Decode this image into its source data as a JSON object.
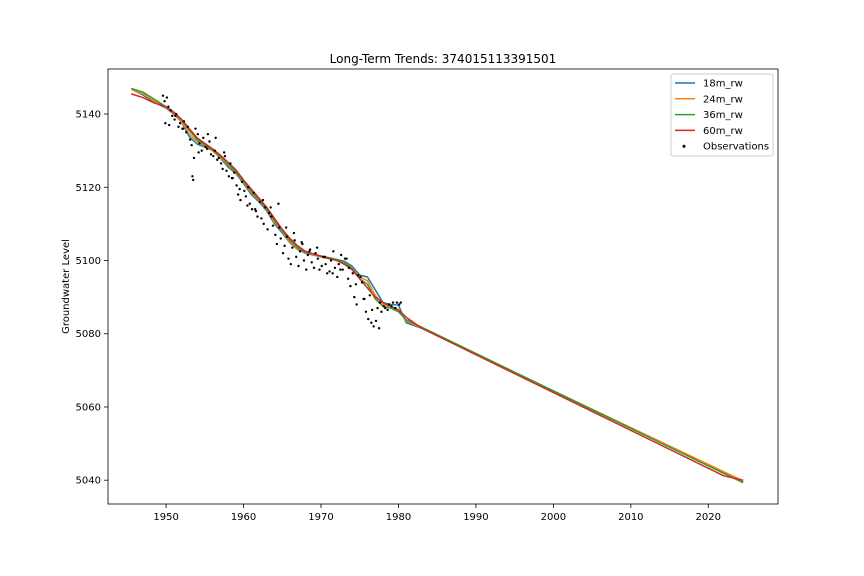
{
  "chart_data": {
    "type": "line",
    "title": "Long-Term Trends: 374015113391501",
    "xlabel": "",
    "ylabel": "Groundwater Level",
    "xlim": [
      1942.5,
      2029.0
    ],
    "ylim": [
      5033.5,
      5152.3
    ],
    "xticks": [
      1950,
      1960,
      1970,
      1980,
      1990,
      2000,
      2010,
      2020
    ],
    "yticks": [
      5040,
      5060,
      5080,
      5100,
      5120,
      5140
    ],
    "legend_position": "top-right",
    "grid": false,
    "series": [
      {
        "name": "18m_rw",
        "color": "#1f77b4",
        "style": "line",
        "x": [
          1945.5,
          1947,
          1948.5,
          1950,
          1951,
          1952,
          1953,
          1954,
          1955,
          1956,
          1957,
          1958,
          1959,
          1960,
          1961,
          1962,
          1963,
          1964,
          1965,
          1966,
          1967,
          1968,
          1969,
          1970,
          1971,
          1972,
          1973,
          1974,
          1975,
          1976,
          1977,
          1978,
          1979,
          1980,
          1981,
          1983,
          2024.5
        ],
        "y": [
          5146.8,
          5145.2,
          5143.2,
          5141.6,
          5140.0,
          5137.8,
          5133.8,
          5131.8,
          5131.0,
          5130.0,
          5128.0,
          5125.5,
          5123.8,
          5121.0,
          5118.0,
          5116.0,
          5113.5,
          5110.0,
          5107.5,
          5104.8,
          5103.0,
          5102.0,
          5101.5,
          5101.0,
          5100.5,
          5100.3,
          5099.8,
          5098.5,
          5096.0,
          5095.5,
          5092.0,
          5088.5,
          5088.0,
          5087.8,
          5083.0,
          5081.5,
          5039.5
        ]
      },
      {
        "name": "24m_rw",
        "color": "#ff7f0e",
        "style": "line",
        "x": [
          1945.5,
          1947,
          1948.5,
          1950,
          1951,
          1952,
          1953,
          1954,
          1955,
          1956,
          1957,
          1958,
          1959,
          1960,
          1961,
          1962,
          1963,
          1964,
          1965,
          1966,
          1967,
          1968,
          1969,
          1970,
          1971,
          1972,
          1973,
          1974,
          1975,
          1976,
          1977,
          1978,
          1979,
          1980,
          1981,
          1983,
          2024.5
        ],
        "y": [
          5146.8,
          5145.5,
          5143.5,
          5141.8,
          5140.2,
          5138.0,
          5134.5,
          5132.5,
          5131.2,
          5130.0,
          5128.2,
          5126.0,
          5124.0,
          5121.3,
          5118.5,
          5116.3,
          5113.8,
          5110.5,
          5107.8,
          5105.0,
          5103.2,
          5102.2,
          5101.6,
          5101.0,
          5100.6,
          5100.2,
          5099.5,
          5098.0,
          5095.5,
          5094.5,
          5090.5,
          5088.0,
          5087.5,
          5086.5,
          5083.5,
          5081.5,
          5039.8
        ]
      },
      {
        "name": "36m_rw",
        "color": "#2ca02c",
        "style": "line",
        "x": [
          1945.5,
          1947,
          1948.5,
          1950,
          1951,
          1952,
          1953,
          1954,
          1955,
          1956,
          1957,
          1958,
          1959,
          1960,
          1961,
          1962,
          1963,
          1964,
          1965,
          1966,
          1967,
          1968,
          1969,
          1970,
          1971,
          1972,
          1973,
          1974,
          1975,
          1976,
          1977,
          1978,
          1979,
          1980,
          1981,
          1983,
          2024.5
        ],
        "y": [
          5147.0,
          5146.0,
          5144.0,
          5142.0,
          5140.5,
          5138.5,
          5135.5,
          5133.0,
          5131.5,
          5130.2,
          5128.5,
          5126.3,
          5124.2,
          5121.5,
          5119.0,
          5116.5,
          5114.0,
          5111.0,
          5108.0,
          5105.5,
          5103.5,
          5102.3,
          5101.8,
          5101.2,
          5100.8,
          5100.3,
          5099.5,
          5097.8,
          5095.0,
          5093.5,
          5089.5,
          5087.5,
          5087.0,
          5086.0,
          5083.8,
          5081.8,
          5039.3
        ]
      },
      {
        "name": "60m_rw",
        "color": "#d62728",
        "style": "line",
        "x": [
          1945.5,
          1947,
          1948.5,
          1950,
          1951,
          1952,
          1953,
          1954,
          1955,
          1956,
          1957,
          1958,
          1959,
          1960,
          1961,
          1962,
          1963,
          1964,
          1965,
          1966,
          1967,
          1968,
          1969,
          1970,
          1971,
          1972,
          1973,
          1974,
          1975,
          1976,
          1977,
          1978,
          1979,
          1980,
          1981,
          1983,
          2022,
          2024.5
        ],
        "y": [
          5145.5,
          5144.5,
          5143.0,
          5142.0,
          5140.5,
          5138.5,
          5136.0,
          5133.5,
          5132.0,
          5130.5,
          5128.8,
          5126.8,
          5124.8,
          5122.0,
          5119.5,
          5117.0,
          5114.5,
          5111.5,
          5108.5,
          5106.0,
          5104.0,
          5102.5,
          5101.8,
          5101.2,
          5100.6,
          5100.0,
          5099.0,
          5097.5,
          5095.0,
          5092.5,
          5090.0,
          5088.5,
          5087.5,
          5086.5,
          5084.5,
          5081.5,
          5041.2,
          5040.0
        ]
      },
      {
        "name": "Observations",
        "color": "#000000",
        "style": "scatter",
        "x": [
          1949.6,
          1949.8,
          1950.1,
          1950.3,
          1950.6,
          1950.8,
          1951.1,
          1951.3,
          1951.6,
          1951.8,
          1952.1,
          1952.3,
          1952.6,
          1952.8,
          1953.1,
          1953.3,
          1953.6,
          1953.8,
          1954.1,
          1954.3,
          1954.6,
          1954.8,
          1955.1,
          1955.3,
          1955.6,
          1955.8,
          1956.1,
          1956.3,
          1956.6,
          1956.8,
          1957.1,
          1957.3,
          1957.6,
          1957.8,
          1958.1,
          1958.3,
          1958.6,
          1958.8,
          1959.1,
          1959.3,
          1959.6,
          1959.8,
          1960.1,
          1960.3,
          1960.6,
          1960.8,
          1961.1,
          1961.3,
          1961.6,
          1961.8,
          1962.1,
          1962.3,
          1962.6,
          1962.8,
          1963.1,
          1963.3,
          1963.6,
          1963.8,
          1964.1,
          1964.3,
          1964.6,
          1964.8,
          1965.1,
          1965.3,
          1965.6,
          1965.8,
          1966.1,
          1966.3,
          1966.6,
          1966.8,
          1967.1,
          1967.3,
          1967.6,
          1967.8,
          1968.1,
          1968.3,
          1968.6,
          1968.8,
          1969.1,
          1969.3,
          1969.6,
          1969.8,
          1970.1,
          1970.3,
          1970.6,
          1970.8,
          1971.1,
          1971.3,
          1971.6,
          1971.8,
          1972.1,
          1972.3,
          1972.6,
          1972.8,
          1973.1,
          1973.3,
          1973.6,
          1973.8,
          1974.1,
          1974.3,
          1974.6,
          1974.8,
          1975.1,
          1975.3,
          1975.6,
          1975.8,
          1976.1,
          1976.3,
          1976.6,
          1976.8,
          1977.1,
          1977.3,
          1977.6,
          1977.8,
          1978.1,
          1978.3,
          1978.6,
          1978.8,
          1979.1,
          1979.3,
          1979.6,
          1979.8,
          1980.1,
          1980.3,
          1949.9,
          1950.4,
          1951.2,
          1952.2,
          1953.4,
          1953.5,
          1954.2,
          1955.4,
          1956.4,
          1957.5,
          1958.5,
          1959.5,
          1960.5,
          1961.5,
          1962.5,
          1963.5,
          1964.5,
          1965.5,
          1966.5,
          1967.5,
          1968.5,
          1969.5,
          1970.5,
          1971.5,
          1972.5,
          1973.5,
          1974.5,
          1975.5,
          1976.5,
          1977.5
        ],
        "y": [
          5145.0,
          5143.5,
          5144.5,
          5142.0,
          5141.0,
          5139.5,
          5138.5,
          5140.0,
          5136.5,
          5137.5,
          5136.0,
          5138.0,
          5135.0,
          5136.5,
          5133.0,
          5131.5,
          5128.0,
          5136.0,
          5134.5,
          5132.0,
          5130.0,
          5133.5,
          5131.0,
          5130.5,
          5132.5,
          5129.0,
          5128.5,
          5130.0,
          5127.5,
          5128.0,
          5126.5,
          5125.0,
          5128.5,
          5124.5,
          5123.0,
          5126.5,
          5122.5,
          5124.0,
          5120.5,
          5118.0,
          5116.5,
          5121.5,
          5119.0,
          5117.5,
          5120.0,
          5115.5,
          5114.0,
          5118.5,
          5113.5,
          5112.0,
          5116.0,
          5111.5,
          5110.0,
          5114.5,
          5108.5,
          5113.0,
          5112.0,
          5109.5,
          5107.0,
          5104.5,
          5109.0,
          5106.0,
          5102.0,
          5104.0,
          5106.5,
          5100.5,
          5099.0,
          5103.5,
          5105.5,
          5101.0,
          5098.5,
          5102.5,
          5104.5,
          5100.0,
          5097.5,
          5101.5,
          5103.0,
          5099.5,
          5098.0,
          5102.0,
          5100.5,
          5097.5,
          5098.5,
          5101.0,
          5099.0,
          5096.5,
          5097.0,
          5100.0,
          5102.5,
          5098.0,
          5095.5,
          5099.0,
          5101.5,
          5097.5,
          5100.5,
          5100.5,
          5098.0,
          5093.0,
          5096.5,
          5090.0,
          5088.0,
          5096.0,
          5095.5,
          5094.0,
          5089.5,
          5086.0,
          5084.0,
          5090.5,
          5086.5,
          5082.0,
          5083.5,
          5087.0,
          5088.5,
          5086.0,
          5087.5,
          5087.0,
          5086.5,
          5088.0,
          5087.5,
          5088.5,
          5087.0,
          5088.5,
          5088.0,
          5088.5,
          5137.5,
          5137.0,
          5139.5,
          5136.0,
          5123.0,
          5122.0,
          5129.5,
          5134.5,
          5133.5,
          5129.5,
          5122.5,
          5119.5,
          5115.0,
          5114.0,
          5116.5,
          5114.5,
          5115.5,
          5109.0,
          5107.5,
          5105.0,
          5102.5,
          5103.5,
          5101.0,
          5096.5,
          5097.5,
          5095.0,
          5093.5,
          5089.5,
          5083.0,
          5081.5
        ]
      }
    ]
  }
}
